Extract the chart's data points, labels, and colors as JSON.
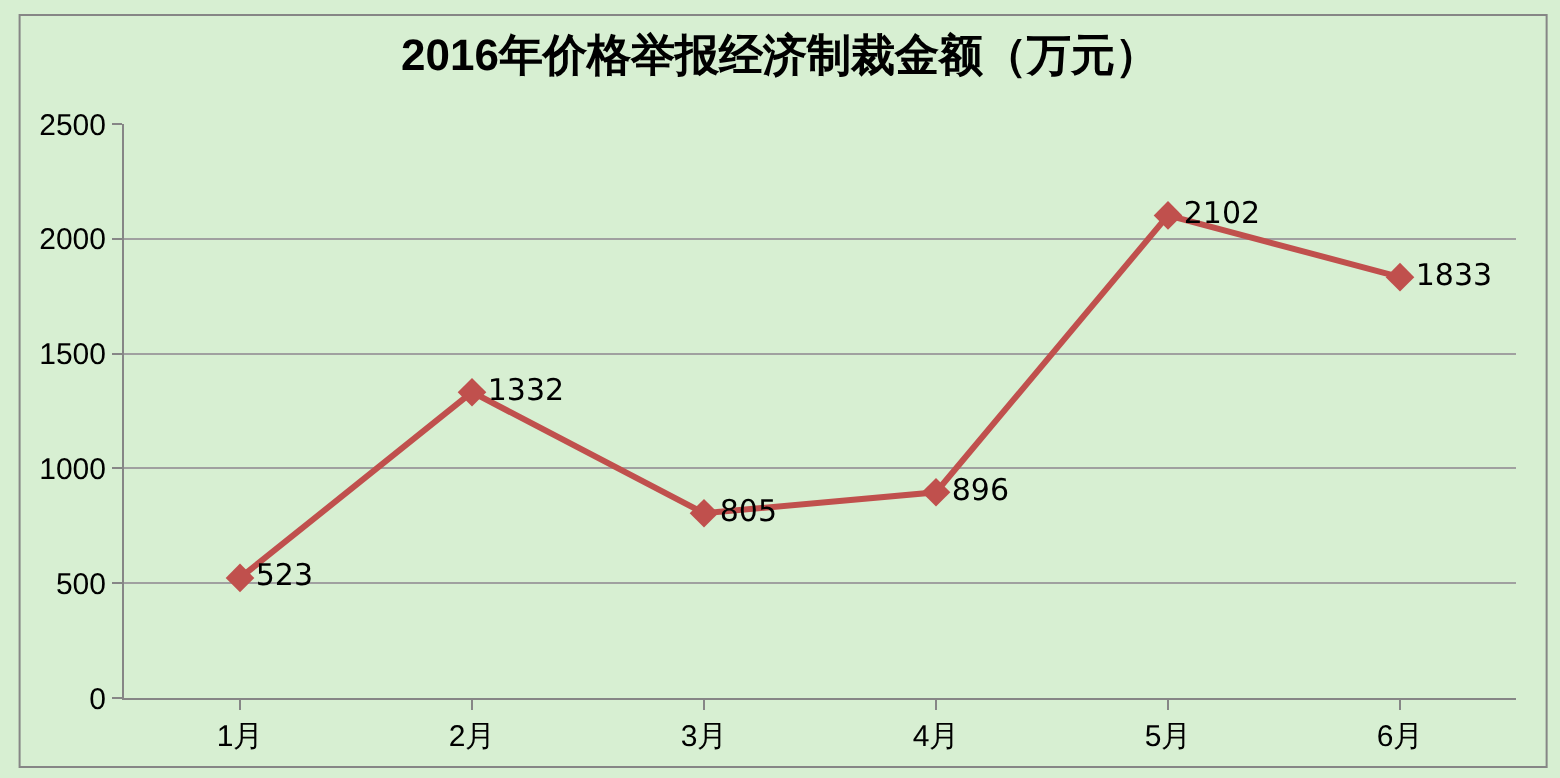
{
  "chart_data": {
    "type": "line",
    "title": "2016年价格举报经济制裁金额（万元）",
    "categories": [
      "1月",
      "2月",
      "3月",
      "4月",
      "5月",
      "6月"
    ],
    "series": [
      {
        "color": "#c0504d",
        "values": [
          523,
          1332,
          805,
          896,
          2102,
          1833
        ]
      }
    ],
    "ylim": [
      0,
      2500
    ],
    "yticks": [
      0,
      500,
      1000,
      1500,
      2000,
      2500
    ],
    "grid": "y",
    "legend": false,
    "marker": "diamond",
    "line_style": "solid",
    "data_labels": true
  }
}
